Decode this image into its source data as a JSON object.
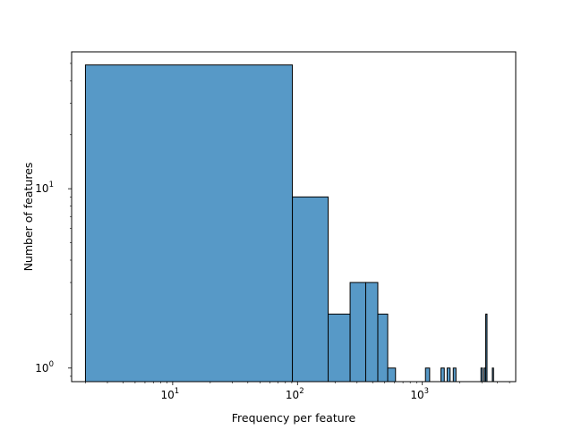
{
  "chart_data": {
    "type": "bar",
    "subtype": "histogram",
    "title": "",
    "xlabel": "Frequency per feature",
    "ylabel": "Number of features",
    "xscale": "log",
    "yscale": "log",
    "xlim": [
      1.55,
      5600
    ],
    "ylim": [
      0.84,
      58
    ],
    "bar_color": "#5799c7",
    "edge_color": "#000000",
    "grid": false,
    "legend": "none",
    "xticks": [
      {
        "value": 10,
        "base": "10",
        "exp": "1"
      },
      {
        "value": 100,
        "base": "10",
        "exp": "2"
      },
      {
        "value": 1000,
        "base": "10",
        "exp": "3"
      }
    ],
    "yticks": [
      {
        "value": 1,
        "base": "10",
        "exp": "0"
      },
      {
        "value": 10,
        "base": "10",
        "exp": "1"
      }
    ],
    "bins": [
      {
        "x0": 2,
        "x1": 91,
        "count": 49
      },
      {
        "x0": 91,
        "x1": 176,
        "count": 9
      },
      {
        "x0": 176,
        "x1": 264,
        "count": 2
      },
      {
        "x0": 264,
        "x1": 352,
        "count": 3
      },
      {
        "x0": 352,
        "x1": 440,
        "count": 3
      },
      {
        "x0": 440,
        "x1": 528,
        "count": 2
      },
      {
        "x0": 528,
        "x1": 610,
        "count": 1
      },
      {
        "x0": 1060,
        "x1": 1145,
        "count": 1
      },
      {
        "x0": 1410,
        "x1": 1500,
        "count": 1
      },
      {
        "x0": 1580,
        "x1": 1670,
        "count": 1
      },
      {
        "x0": 1770,
        "x1": 1860,
        "count": 1
      },
      {
        "x0": 2950,
        "x1": 3035,
        "count": 1
      },
      {
        "x0": 3125,
        "x1": 3210,
        "count": 1
      },
      {
        "x0": 3220,
        "x1": 3300,
        "count": 2
      },
      {
        "x0": 3640,
        "x1": 3720,
        "count": 1
      }
    ]
  }
}
